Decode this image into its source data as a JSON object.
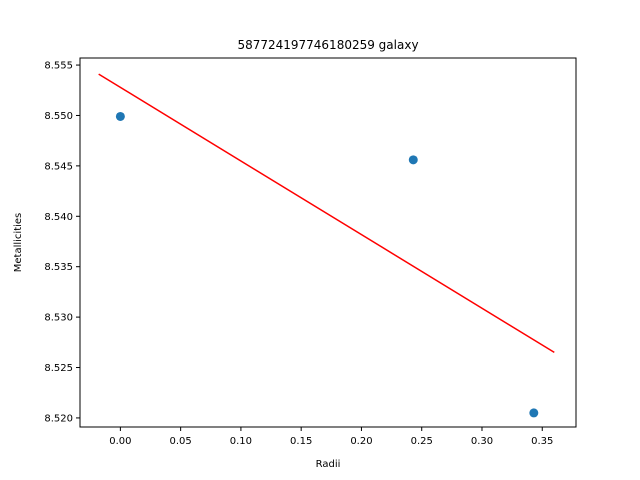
{
  "chart_data": {
    "type": "scatter",
    "title": "587724197746180259 galaxy",
    "xlabel": "Radii",
    "ylabel": "Metallicities",
    "xlim": [
      -0.0335,
      0.378
    ],
    "ylim": [
      8.5191,
      8.5557
    ],
    "x_ticks": [
      0.0,
      0.05,
      0.1,
      0.15,
      0.2,
      0.25,
      0.3,
      0.35
    ],
    "x_tick_labels": [
      "0.00",
      "0.05",
      "0.10",
      "0.15",
      "0.20",
      "0.25",
      "0.30",
      "0.35"
    ],
    "y_ticks": [
      8.52,
      8.525,
      8.53,
      8.535,
      8.54,
      8.545,
      8.55,
      8.555
    ],
    "y_tick_labels": [
      "8.520",
      "8.525",
      "8.530",
      "8.535",
      "8.540",
      "8.545",
      "8.550",
      "8.555"
    ],
    "grid": false,
    "series": [
      {
        "type": "scatter",
        "color": "#1f77b4",
        "x": [
          0.0,
          0.243,
          0.343
        ],
        "y": [
          8.5499,
          8.5456,
          8.5205
        ]
      },
      {
        "type": "line",
        "color": "#ff0000",
        "x": [
          -0.018,
          0.36
        ],
        "y": [
          8.5541,
          8.5265
        ]
      }
    ]
  }
}
